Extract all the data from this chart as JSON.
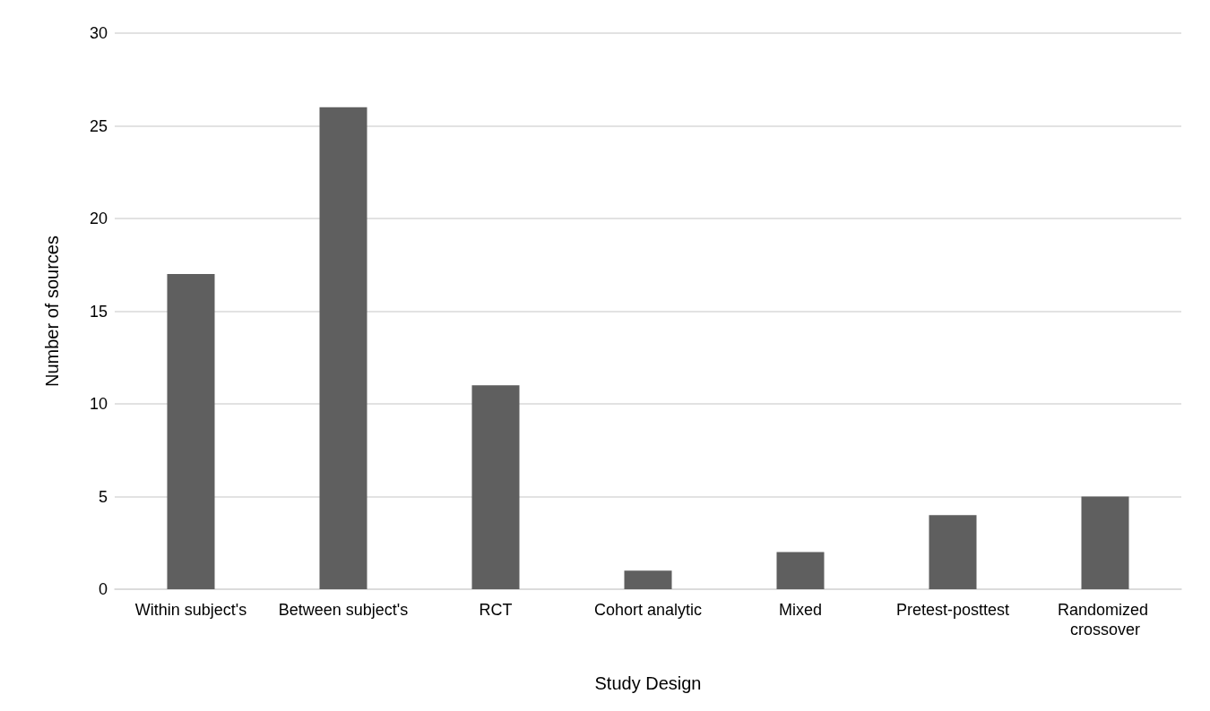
{
  "chart_data": {
    "type": "bar",
    "xlabel": "Study Design",
    "ylabel": "Number of sources",
    "categories": [
      "Within subject's",
      "Between subject's",
      "RCT",
      "Cohort analytic",
      "Mixed",
      "Pretest-posttest",
      "Randomized crossover"
    ],
    "values": [
      17,
      26,
      11,
      1,
      2,
      4,
      5
    ],
    "color": "#5f5f5f",
    "ylim": [
      0,
      30
    ],
    "yticks": [
      0,
      5,
      10,
      15,
      20,
      25,
      30
    ],
    "grid": "y"
  }
}
